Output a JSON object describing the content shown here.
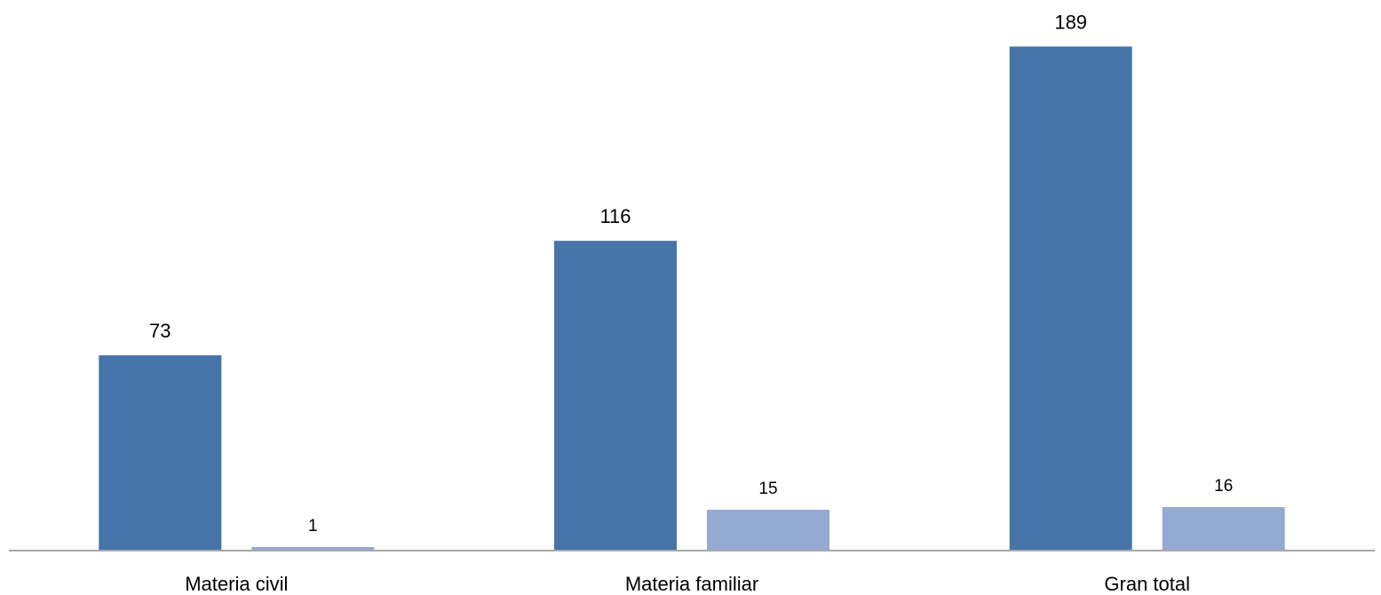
{
  "chart_data": {
    "type": "bar",
    "categories": [
      "Materia civil",
      "Materia familiar",
      "Gran total"
    ],
    "series": [
      {
        "values": [
          73,
          116,
          189
        ],
        "color": "#4674A8"
      },
      {
        "values": [
          1,
          15,
          16
        ],
        "color": "#95AAD2"
      }
    ],
    "title": "",
    "xlabel": "",
    "ylabel": "",
    "ylim": [
      0,
      200
    ],
    "grid": false,
    "legend": "none",
    "axis_color": "#8C8C8C"
  }
}
